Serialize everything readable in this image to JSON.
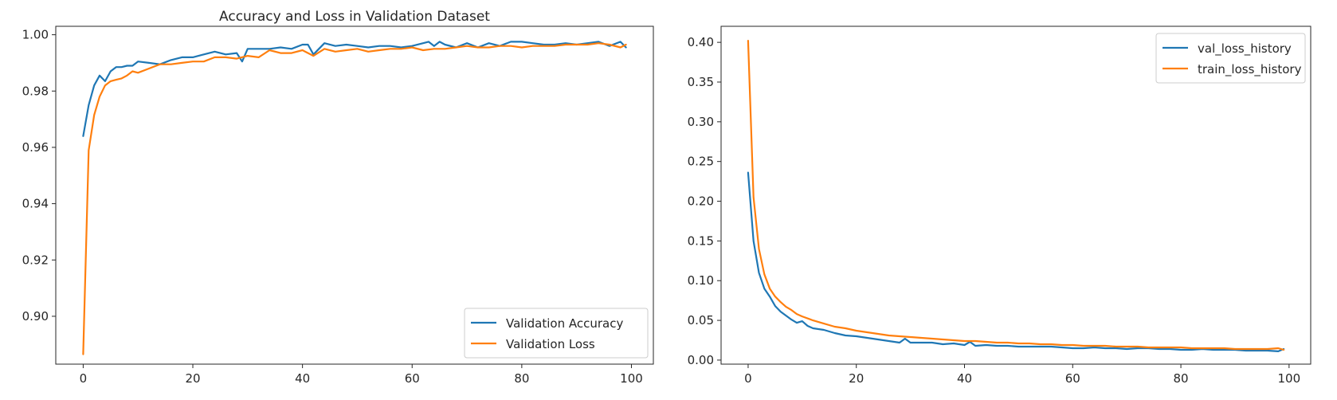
{
  "colors": {
    "series_1": "#1f77b4",
    "series_2": "#ff7f0e",
    "axis": "#262626",
    "legend_border": "#cccccc"
  },
  "chart_data": [
    {
      "type": "line",
      "title": "Accuracy and Loss in Validation Dataset",
      "xlabel": "",
      "ylabel": "",
      "xlim": [
        -5,
        104
      ],
      "ylim": [
        0.883,
        1.003
      ],
      "xticks": [
        0,
        20,
        40,
        60,
        80,
        100
      ],
      "yticks": [
        0.9,
        0.92,
        0.94,
        0.96,
        0.98,
        1.0
      ],
      "xtick_labels": [
        "0",
        "20",
        "40",
        "60",
        "80",
        "100"
      ],
      "ytick_labels": [
        "0.90",
        "0.92",
        "0.94",
        "0.96",
        "0.98",
        "1.00"
      ],
      "grid": false,
      "legend_position": "lower right",
      "series": [
        {
          "name": "Validation Accuracy",
          "color": "#1f77b4",
          "x": [
            0,
            1,
            2,
            3,
            4,
            5,
            6,
            7,
            8,
            9,
            10,
            12,
            14,
            16,
            18,
            20,
            22,
            24,
            26,
            28,
            29,
            30,
            32,
            34,
            36,
            38,
            40,
            41,
            42,
            44,
            46,
            48,
            50,
            52,
            54,
            56,
            58,
            60,
            62,
            63,
            64,
            65,
            66,
            68,
            70,
            72,
            74,
            76,
            78,
            80,
            82,
            84,
            86,
            88,
            90,
            92,
            94,
            96,
            98,
            99
          ],
          "values": [
            0.964,
            0.975,
            0.982,
            0.9855,
            0.9835,
            0.987,
            0.9885,
            0.9885,
            0.989,
            0.989,
            0.9905,
            0.99,
            0.9895,
            0.991,
            0.992,
            0.992,
            0.993,
            0.994,
            0.993,
            0.9935,
            0.9905,
            0.995,
            0.995,
            0.995,
            0.9955,
            0.995,
            0.9965,
            0.9965,
            0.993,
            0.997,
            0.996,
            0.9965,
            0.996,
            0.9955,
            0.996,
            0.996,
            0.9955,
            0.996,
            0.997,
            0.9975,
            0.996,
            0.9975,
            0.9965,
            0.9955,
            0.997,
            0.9955,
            0.997,
            0.996,
            0.9975,
            0.9975,
            0.997,
            0.9965,
            0.9965,
            0.997,
            0.9965,
            0.997,
            0.9975,
            0.996,
            0.9975,
            0.9955
          ]
        },
        {
          "name": "Validation Loss",
          "color": "#ff7f0e",
          "x": [
            0,
            1,
            2,
            3,
            4,
            5,
            6,
            7,
            8,
            9,
            10,
            12,
            14,
            16,
            18,
            20,
            22,
            24,
            26,
            28,
            30,
            32,
            34,
            36,
            38,
            40,
            42,
            44,
            46,
            48,
            50,
            52,
            54,
            56,
            58,
            60,
            62,
            64,
            66,
            68,
            70,
            72,
            74,
            76,
            78,
            80,
            82,
            84,
            86,
            88,
            90,
            92,
            94,
            96,
            98,
            99
          ],
          "values": [
            0.8865,
            0.959,
            0.9715,
            0.978,
            0.982,
            0.9835,
            0.984,
            0.9845,
            0.9855,
            0.987,
            0.9865,
            0.988,
            0.9895,
            0.9895,
            0.99,
            0.9905,
            0.9905,
            0.992,
            0.992,
            0.9915,
            0.9925,
            0.992,
            0.9945,
            0.9935,
            0.9935,
            0.9945,
            0.9925,
            0.995,
            0.994,
            0.9945,
            0.995,
            0.994,
            0.9945,
            0.995,
            0.995,
            0.9955,
            0.9945,
            0.995,
            0.995,
            0.9955,
            0.996,
            0.9955,
            0.9955,
            0.996,
            0.996,
            0.9955,
            0.996,
            0.996,
            0.996,
            0.9965,
            0.9965,
            0.9965,
            0.997,
            0.9965,
            0.9955,
            0.9965
          ]
        }
      ]
    },
    {
      "type": "line",
      "title": "",
      "xlabel": "",
      "ylabel": "",
      "xlim": [
        -5,
        104
      ],
      "ylim": [
        -0.0051,
        0.4202
      ],
      "xticks": [
        0,
        20,
        40,
        60,
        80,
        100
      ],
      "yticks": [
        0.0,
        0.05,
        0.1,
        0.15,
        0.2,
        0.25,
        0.3,
        0.35,
        0.4
      ],
      "xtick_labels": [
        "0",
        "20",
        "40",
        "60",
        "80",
        "100"
      ],
      "ytick_labels": [
        "0.00",
        "0.05",
        "0.10",
        "0.15",
        "0.20",
        "0.25",
        "0.30",
        "0.35",
        "0.40"
      ],
      "grid": false,
      "legend_position": "upper right",
      "series": [
        {
          "name": "val_loss_history",
          "color": "#1f77b4",
          "x": [
            0,
            1,
            2,
            3,
            4,
            5,
            6,
            7,
            8,
            9,
            10,
            11,
            12,
            14,
            16,
            18,
            20,
            22,
            24,
            26,
            28,
            29,
            30,
            32,
            34,
            36,
            38,
            40,
            41,
            42,
            44,
            46,
            48,
            50,
            52,
            54,
            56,
            58,
            60,
            62,
            64,
            66,
            68,
            70,
            72,
            74,
            76,
            78,
            80,
            82,
            84,
            86,
            88,
            90,
            92,
            94,
            96,
            98,
            99
          ],
          "values": [
            0.236,
            0.15,
            0.11,
            0.09,
            0.08,
            0.068,
            0.061,
            0.056,
            0.051,
            0.047,
            0.049,
            0.043,
            0.04,
            0.038,
            0.034,
            0.031,
            0.03,
            0.028,
            0.026,
            0.024,
            0.022,
            0.027,
            0.022,
            0.022,
            0.022,
            0.02,
            0.021,
            0.019,
            0.023,
            0.018,
            0.019,
            0.018,
            0.018,
            0.017,
            0.017,
            0.017,
            0.017,
            0.016,
            0.015,
            0.015,
            0.016,
            0.015,
            0.015,
            0.014,
            0.015,
            0.015,
            0.014,
            0.014,
            0.013,
            0.013,
            0.014,
            0.013,
            0.013,
            0.013,
            0.012,
            0.012,
            0.012,
            0.011,
            0.014
          ]
        },
        {
          "name": "train_loss_history",
          "color": "#ff7f0e",
          "x": [
            0,
            1,
            2,
            3,
            4,
            5,
            6,
            7,
            8,
            9,
            10,
            12,
            14,
            16,
            18,
            20,
            22,
            24,
            26,
            28,
            30,
            32,
            34,
            36,
            38,
            40,
            42,
            44,
            46,
            48,
            50,
            52,
            54,
            56,
            58,
            60,
            62,
            64,
            66,
            68,
            70,
            72,
            74,
            76,
            78,
            80,
            82,
            84,
            86,
            88,
            90,
            92,
            94,
            96,
            98,
            99
          ],
          "values": [
            0.402,
            0.205,
            0.14,
            0.108,
            0.09,
            0.08,
            0.073,
            0.067,
            0.063,
            0.058,
            0.055,
            0.05,
            0.046,
            0.042,
            0.04,
            0.037,
            0.035,
            0.033,
            0.031,
            0.03,
            0.029,
            0.028,
            0.027,
            0.026,
            0.025,
            0.024,
            0.024,
            0.023,
            0.022,
            0.022,
            0.021,
            0.021,
            0.02,
            0.02,
            0.019,
            0.019,
            0.018,
            0.018,
            0.018,
            0.017,
            0.017,
            0.017,
            0.016,
            0.016,
            0.016,
            0.016,
            0.015,
            0.015,
            0.015,
            0.015,
            0.014,
            0.014,
            0.014,
            0.014,
            0.015,
            0.013
          ]
        }
      ]
    }
  ]
}
